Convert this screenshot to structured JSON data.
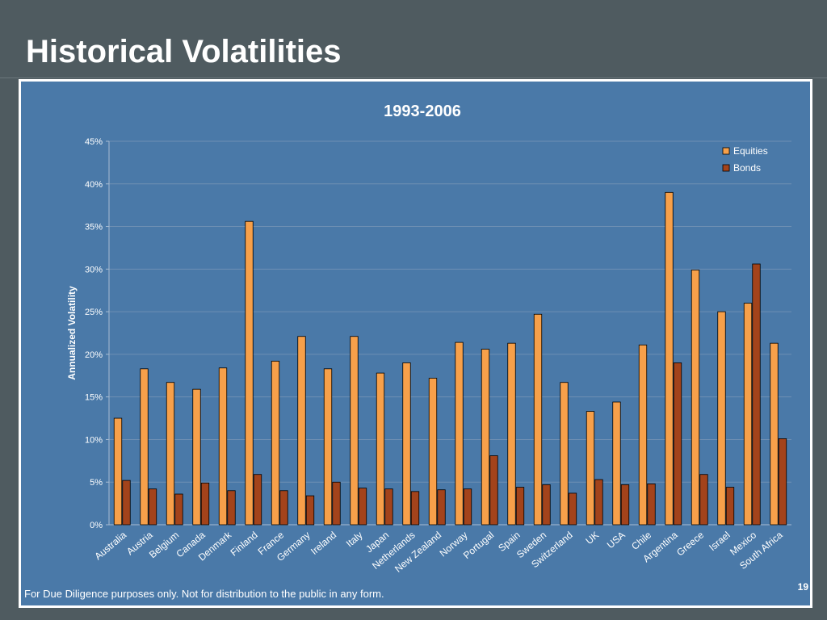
{
  "slide": {
    "title": "Historical Volatilities",
    "page_number": "19",
    "disclaimer": "For Due Diligence purposes only.  Not for distribution to the public in any form."
  },
  "colors": {
    "background": "#4f5b60",
    "panel": "#4a79a8",
    "equities": "#f7a04a",
    "bonds": "#a3431b",
    "text": "#ffffff"
  },
  "chart_data": {
    "type": "bar",
    "title": "1993-2006",
    "ylabel": "Annualized Volatility",
    "xlabel": "",
    "ylim": [
      0,
      0.45
    ],
    "y_ticks": [
      "0%",
      "5%",
      "10%",
      "15%",
      "20%",
      "25%",
      "30%",
      "35%",
      "40%",
      "45%"
    ],
    "grid": true,
    "legend_position": "top-right",
    "categories": [
      "Australia",
      "Austria",
      "Belgium",
      "Canada",
      "Denmark",
      "Finland",
      "France",
      "Germany",
      "Ireland",
      "Italy",
      "Japan",
      "Netherlands",
      "New Zealand",
      "Norway",
      "Portugal",
      "Spain",
      "Sweden",
      "Switzerland",
      "UK",
      "USA",
      "Chile",
      "Argentina",
      "Greece",
      "Israel",
      "Mexico",
      "South Africa"
    ],
    "series": [
      {
        "name": "Equities",
        "color": "#f7a04a",
        "values": [
          0.125,
          0.183,
          0.167,
          0.159,
          0.184,
          0.356,
          0.192,
          0.221,
          0.183,
          0.221,
          0.178,
          0.19,
          0.172,
          0.214,
          0.206,
          0.213,
          0.247,
          0.167,
          0.133,
          0.144,
          0.211,
          0.39,
          0.299,
          0.25,
          0.26,
          0.213
        ]
      },
      {
        "name": "Bonds",
        "color": "#a3431b",
        "values": [
          0.052,
          0.042,
          0.036,
          0.049,
          0.04,
          0.059,
          0.04,
          0.034,
          0.05,
          0.043,
          0.042,
          0.039,
          0.041,
          0.042,
          0.081,
          0.044,
          0.047,
          0.037,
          0.053,
          0.047,
          0.048,
          0.19,
          0.059,
          0.044,
          0.306,
          0.101
        ]
      }
    ]
  }
}
